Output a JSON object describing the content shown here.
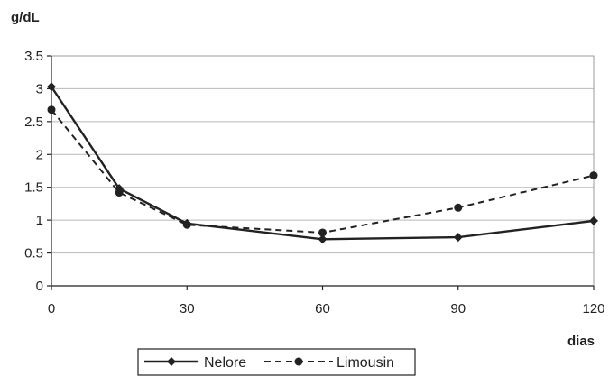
{
  "chart_data": {
    "type": "line",
    "ylabel": "g/dL",
    "xlabel": "dias",
    "x": [
      0,
      15,
      30,
      60,
      90,
      120
    ],
    "xlim": [
      0,
      120
    ],
    "ylim": [
      0,
      3.5
    ],
    "xticks": [
      "0",
      "30",
      "60",
      "90",
      "120"
    ],
    "xtick_values": [
      0,
      30,
      60,
      90,
      120
    ],
    "yticks": [
      "0",
      "0.5",
      "1",
      "1.5",
      "2",
      "2.5",
      "3",
      "3.5"
    ],
    "ytick_values": [
      0,
      0.5,
      1,
      1.5,
      2,
      2.5,
      3,
      3.5
    ],
    "grid": "horizontal",
    "legend_position": "bottom",
    "series": [
      {
        "name": "Nelore",
        "values": [
          3.03,
          1.48,
          0.95,
          0.71,
          0.74,
          0.99
        ],
        "line_style": "solid",
        "marker": "diamond",
        "color": "#222222"
      },
      {
        "name": "Limousin",
        "values": [
          2.68,
          1.42,
          0.93,
          0.81,
          1.19,
          1.68
        ],
        "line_style": "dashed",
        "marker": "circle",
        "color": "#222222"
      }
    ]
  }
}
